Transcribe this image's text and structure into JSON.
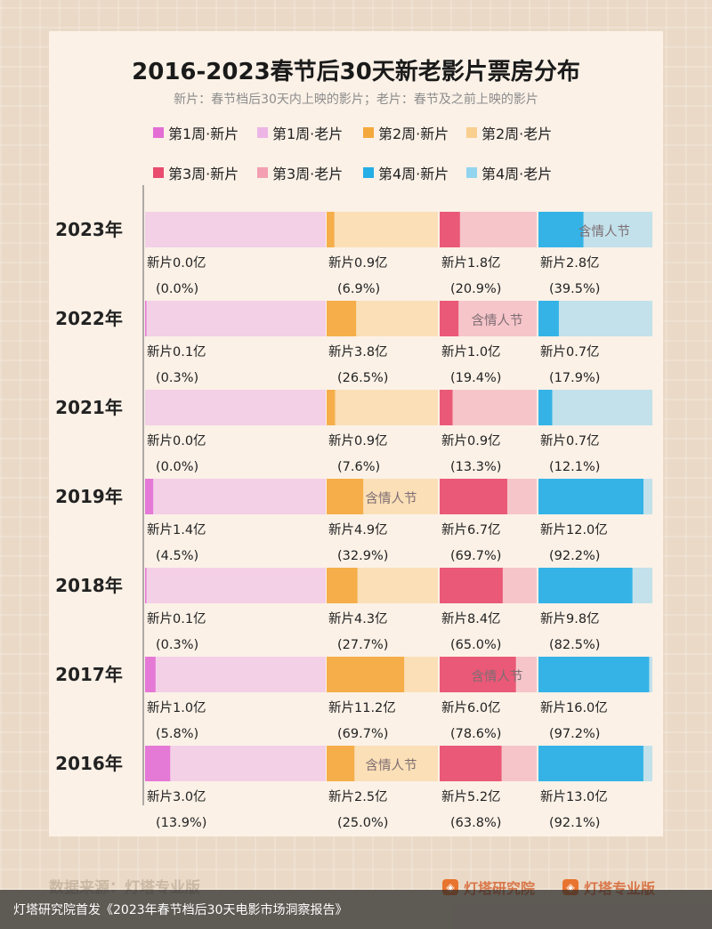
{
  "title": "2016-2023春节后30天新老影片票房分布",
  "subtitle": "新片：春节档后30天内上映的影片；老片：春节及之前上映的影片",
  "legend": [
    {
      "label": "第1周·新片",
      "color": "#e36fd4"
    },
    {
      "label": "第1周·老片",
      "color": "#edb5e6"
    },
    {
      "label": "第2周·新片",
      "color": "#f4a93d"
    },
    {
      "label": "第2周·老片",
      "color": "#f9cf8f"
    },
    {
      "label": "第3周·新片",
      "color": "#e94c6e"
    },
    {
      "label": "第3周·老片",
      "color": "#f2a0b2"
    },
    {
      "label": "第4周·新片",
      "color": "#26aee6"
    },
    {
      "label": "第4周·老片",
      "color": "#93d4ee"
    }
  ],
  "source": "数据来源：灯塔专业版",
  "brands": [
    "灯塔研究院",
    "灯塔专业版"
  ],
  "caption": "灯塔研究院首发《2023年春节档后30天电影市场洞察报告》",
  "chart_data": {
    "type": "bar",
    "categories": [
      "2023年",
      "2022年",
      "2021年",
      "2019年",
      "2018年",
      "2017年",
      "2016年"
    ],
    "series": [
      {
        "name": "第1周·新片",
        "values_yi": [
          0.0,
          0.1,
          0.0,
          1.4,
          0.1,
          1.0,
          3.0
        ],
        "share_pct": [
          0.0,
          0.3,
          0.0,
          4.5,
          0.3,
          5.8,
          13.9
        ]
      },
      {
        "name": "第2周·新片",
        "values_yi": [
          0.9,
          3.8,
          0.9,
          4.9,
          4.3,
          11.2,
          2.5
        ],
        "share_pct": [
          6.9,
          26.5,
          7.6,
          32.9,
          27.7,
          69.7,
          25.0
        ]
      },
      {
        "name": "第3周·新片",
        "values_yi": [
          1.8,
          1.0,
          0.9,
          6.7,
          8.4,
          6.0,
          5.2
        ],
        "share_pct": [
          20.9,
          19.4,
          13.3,
          69.7,
          65.0,
          78.6,
          63.8
        ]
      },
      {
        "name": "第4周·新片",
        "values_yi": [
          2.8,
          0.7,
          0.7,
          12.0,
          9.8,
          16.0,
          13.0
        ],
        "share_pct": [
          39.5,
          17.9,
          12.1,
          92.2,
          82.5,
          97.2,
          92.1
        ]
      }
    ],
    "week_labels": [
      [
        "新片0.0亿",
        "新片0.9亿",
        "新片1.8亿",
        "新片2.8亿"
      ],
      [
        "新片0.1亿",
        "新片3.8亿",
        "新片1.0亿",
        "新片0.7亿"
      ],
      [
        "新片0.0亿",
        "新片0.9亿",
        "新片0.9亿",
        "新片0.7亿"
      ],
      [
        "新片1.4亿",
        "新片4.9亿",
        "新片6.7亿",
        "新片12.0亿"
      ],
      [
        "新片0.1亿",
        "新片4.3亿",
        "新片8.4亿",
        "新片9.8亿"
      ],
      [
        "新片1.0亿",
        "新片11.2亿",
        "新片6.0亿",
        "新片16.0亿"
      ],
      [
        "新片3.0亿",
        "新片2.5亿",
        "新片5.2亿",
        "新片13.0亿"
      ]
    ],
    "pct_labels": [
      [
        "(0.0%)",
        "(6.9%)",
        "(20.9%)",
        "(39.5%)"
      ],
      [
        "(0.3%)",
        "(26.5%)",
        "(19.4%)",
        "(17.9%)"
      ],
      [
        "(0.0%)",
        "(7.6%)",
        "(13.3%)",
        "(12.1%)"
      ],
      [
        "(4.5%)",
        "(32.9%)",
        "(69.7%)",
        "(92.2%)"
      ],
      [
        "(0.3%)",
        "(27.7%)",
        "(65.0%)",
        "(82.5%)"
      ],
      [
        "(5.8%)",
        "(69.7%)",
        "(78.6%)",
        "(97.2%)"
      ],
      [
        "(13.9%)",
        "(25.0%)",
        "(63.8%)",
        "(92.1%)"
      ]
    ],
    "valentine_label": "含情人节",
    "valentine_week": [
      3,
      2,
      null,
      1,
      null,
      2,
      1
    ]
  }
}
